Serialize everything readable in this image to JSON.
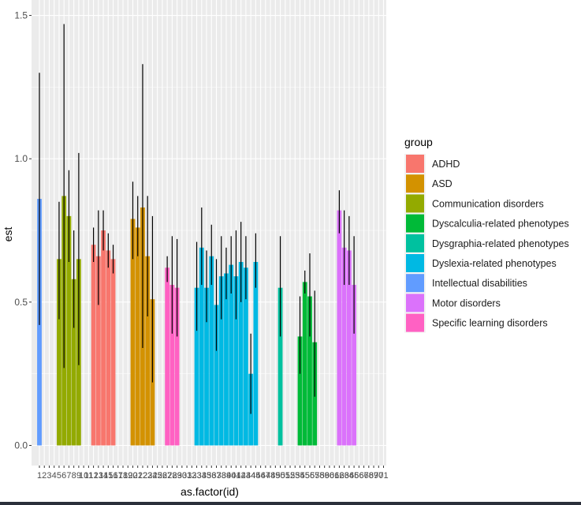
{
  "chart_data": {
    "type": "bar",
    "xlabel": "as.factor(id)",
    "ylabel": "est",
    "ylim": [
      0,
      1.5
    ],
    "yticks": [
      "0.0",
      "0.5",
      "1.0",
      "1.5"
    ],
    "categories": [
      "1",
      "2",
      "3",
      "4",
      "5",
      "6",
      "7",
      "8",
      "9",
      "10",
      "11",
      "12",
      "13",
      "14",
      "15",
      "16",
      "17",
      "18",
      "19",
      "20",
      "21",
      "22",
      "23",
      "24",
      "25",
      "26",
      "27",
      "28",
      "29",
      "30",
      "31",
      "32",
      "33",
      "34",
      "35",
      "36",
      "37",
      "38",
      "39",
      "40",
      "41",
      "42",
      "43",
      "44",
      "45",
      "46",
      "47",
      "48",
      "49",
      "50",
      "51",
      "52",
      "53",
      "54",
      "55",
      "56",
      "57",
      "58",
      "59",
      "60",
      "61",
      "62",
      "63",
      "64",
      "65",
      "66",
      "67",
      "68",
      "69",
      "70",
      "71"
    ],
    "grid": true,
    "legend": {
      "title": "group",
      "position": "right",
      "entries": [
        {
          "label": "ADHD",
          "color": "#F8766D"
        },
        {
          "label": "ASD",
          "color": "#D39200"
        },
        {
          "label": "Communication disorders",
          "color": "#93AA00"
        },
        {
          "label": "Dyscalculia-related phenotypes",
          "color": "#00BA38"
        },
        {
          "label": "Dysgraphia-related phenotypes",
          "color": "#00C19F"
        },
        {
          "label": "Dyslexia-related phenotypes",
          "color": "#00B9E3"
        },
        {
          "label": "Intellectual disabilities",
          "color": "#619CFF"
        },
        {
          "label": "Motor disorders",
          "color": "#DB72FB"
        },
        {
          "label": "Specific learning disorders",
          "color": "#FF61C3"
        }
      ]
    },
    "bars": [
      {
        "id": 1,
        "group": "Intellectual disabilities",
        "value": 0.86,
        "lower": 0.42,
        "upper": 1.3
      },
      {
        "id": 5,
        "group": "Communication disorders",
        "value": 0.65,
        "lower": 0.44,
        "upper": 0.85
      },
      {
        "id": 6,
        "group": "Communication disorders",
        "value": 0.87,
        "lower": 0.27,
        "upper": 1.47
      },
      {
        "id": 7,
        "group": "Communication disorders",
        "value": 0.8,
        "lower": 0.64,
        "upper": 0.96
      },
      {
        "id": 8,
        "group": "Communication disorders",
        "value": 0.58,
        "lower": 0.41,
        "upper": 0.75
      },
      {
        "id": 9,
        "group": "Communication disorders",
        "value": 0.65,
        "lower": 0.28,
        "upper": 1.02
      },
      {
        "id": 12,
        "group": "ADHD",
        "value": 0.7,
        "lower": 0.64,
        "upper": 0.76
      },
      {
        "id": 13,
        "group": "ADHD",
        "value": 0.66,
        "lower": 0.49,
        "upper": 0.82
      },
      {
        "id": 14,
        "group": "ADHD",
        "value": 0.75,
        "lower": 0.68,
        "upper": 0.82
      },
      {
        "id": 15,
        "group": "ADHD",
        "value": 0.68,
        "lower": 0.62,
        "upper": 0.74
      },
      {
        "id": 16,
        "group": "ADHD",
        "value": 0.65,
        "lower": 0.6,
        "upper": 0.7
      },
      {
        "id": 20,
        "group": "ASD",
        "value": 0.79,
        "lower": 0.65,
        "upper": 0.92
      },
      {
        "id": 21,
        "group": "ASD",
        "value": 0.76,
        "lower": 0.66,
        "upper": 0.87
      },
      {
        "id": 22,
        "group": "ASD",
        "value": 0.83,
        "lower": 0.34,
        "upper": 1.33
      },
      {
        "id": 23,
        "group": "ASD",
        "value": 0.66,
        "lower": 0.45,
        "upper": 0.87
      },
      {
        "id": 24,
        "group": "ASD",
        "value": 0.51,
        "lower": 0.22,
        "upper": 0.8
      },
      {
        "id": 27,
        "group": "Specific learning disorders",
        "value": 0.62,
        "lower": 0.57,
        "upper": 0.66
      },
      {
        "id": 28,
        "group": "Specific learning disorders",
        "value": 0.56,
        "lower": 0.39,
        "upper": 0.73
      },
      {
        "id": 29,
        "group": "Specific learning disorders",
        "value": 0.55,
        "lower": 0.38,
        "upper": 0.72
      },
      {
        "id": 33,
        "group": "Dyslexia-related phenotypes",
        "value": 0.55,
        "lower": 0.4,
        "upper": 0.71
      },
      {
        "id": 34,
        "group": "Dyslexia-related phenotypes",
        "value": 0.69,
        "lower": 0.56,
        "upper": 0.83
      },
      {
        "id": 35,
        "group": "Dyslexia-related phenotypes",
        "value": 0.55,
        "lower": 0.43,
        "upper": 0.68
      },
      {
        "id": 36,
        "group": "Dyslexia-related phenotypes",
        "value": 0.66,
        "lower": 0.56,
        "upper": 0.77
      },
      {
        "id": 37,
        "group": "Dyslexia-related phenotypes",
        "value": 0.49,
        "lower": 0.33,
        "upper": 0.65
      },
      {
        "id": 38,
        "group": "Dyslexia-related phenotypes",
        "value": 0.59,
        "lower": 0.44,
        "upper": 0.73
      },
      {
        "id": 39,
        "group": "Dyslexia-related phenotypes",
        "value": 0.6,
        "lower": 0.51,
        "upper": 0.69
      },
      {
        "id": 40,
        "group": "Dyslexia-related phenotypes",
        "value": 0.63,
        "lower": 0.53,
        "upper": 0.73
      },
      {
        "id": 41,
        "group": "Dyslexia-related phenotypes",
        "value": 0.59,
        "lower": 0.44,
        "upper": 0.75
      },
      {
        "id": 42,
        "group": "Dyslexia-related phenotypes",
        "value": 0.64,
        "lower": 0.5,
        "upper": 0.78
      },
      {
        "id": 43,
        "group": "Dyslexia-related phenotypes",
        "value": 0.62,
        "lower": 0.51,
        "upper": 0.73
      },
      {
        "id": 44,
        "group": "Dyslexia-related phenotypes",
        "value": 0.25,
        "lower": 0.11,
        "upper": 0.39
      },
      {
        "id": 45,
        "group": "Dyslexia-related phenotypes",
        "value": 0.64,
        "lower": 0.55,
        "upper": 0.74
      },
      {
        "id": 50,
        "group": "Dysgraphia-related phenotypes",
        "value": 0.55,
        "lower": 0.38,
        "upper": 0.73
      },
      {
        "id": 54,
        "group": "Dyscalculia-related phenotypes",
        "value": 0.38,
        "lower": 0.25,
        "upper": 0.52
      },
      {
        "id": 55,
        "group": "Dyscalculia-related phenotypes",
        "value": 0.57,
        "lower": 0.53,
        "upper": 0.61
      },
      {
        "id": 56,
        "group": "Dyscalculia-related phenotypes",
        "value": 0.52,
        "lower": 0.38,
        "upper": 0.67
      },
      {
        "id": 57,
        "group": "Dyscalculia-related phenotypes",
        "value": 0.36,
        "lower": 0.17,
        "upper": 0.54
      },
      {
        "id": 62,
        "group": "Motor disorders",
        "value": 0.82,
        "lower": 0.74,
        "upper": 0.89
      },
      {
        "id": 63,
        "group": "Motor disorders",
        "value": 0.69,
        "lower": 0.56,
        "upper": 0.82
      },
      {
        "id": 64,
        "group": "Motor disorders",
        "value": 0.68,
        "lower": 0.56,
        "upper": 0.8
      },
      {
        "id": 65,
        "group": "Motor disorders",
        "value": 0.56,
        "lower": 0.39,
        "upper": 0.73
      }
    ]
  }
}
